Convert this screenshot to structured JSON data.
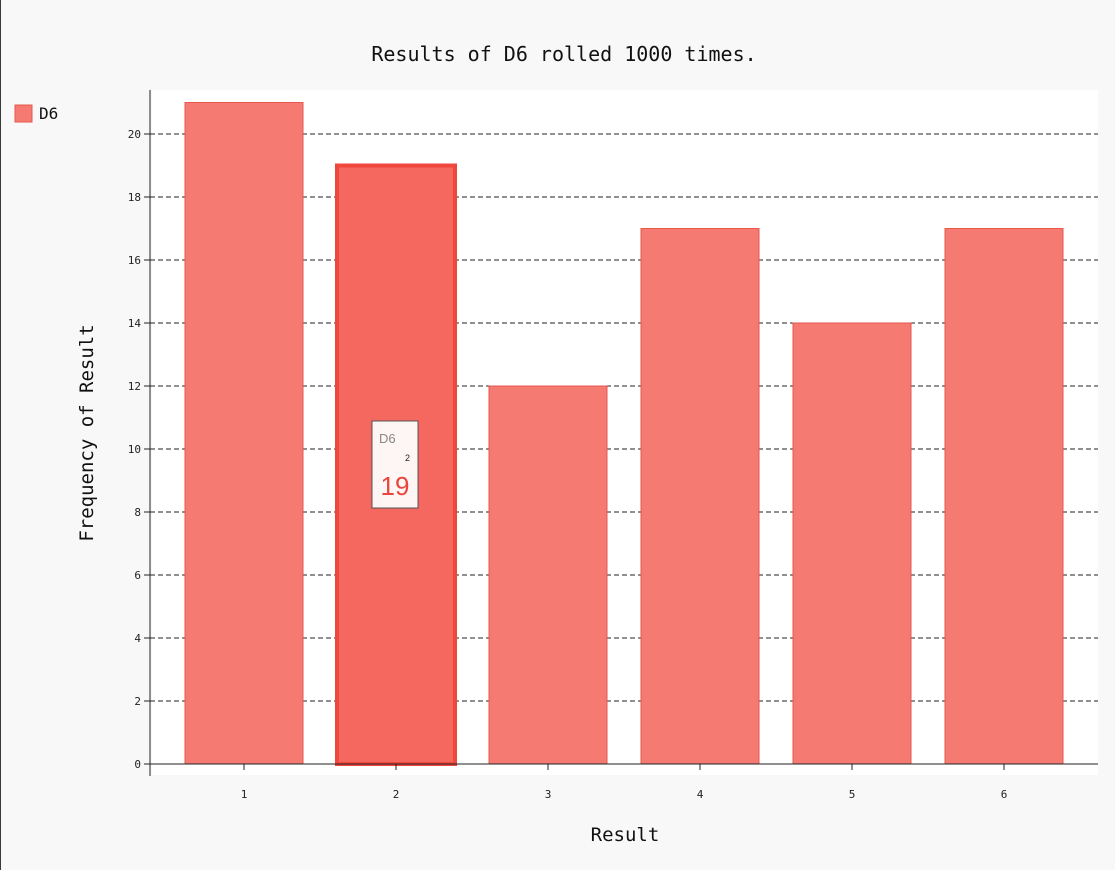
{
  "chart_data": {
    "type": "bar",
    "title": "Results of D6 rolled 1000 times.",
    "xlabel": "Result",
    "ylabel": "Frequency of Result",
    "categories": [
      "1",
      "2",
      "3",
      "4",
      "5",
      "6"
    ],
    "series": [
      {
        "name": "D6",
        "values": [
          21,
          19,
          12,
          17,
          14,
          17
        ]
      }
    ],
    "ylim": [
      0,
      21
    ],
    "yticks": [
      "0",
      "2",
      "4",
      "6",
      "8",
      "10",
      "12",
      "14",
      "16",
      "18",
      "20"
    ],
    "grid": true,
    "legend": "left",
    "colors": {
      "bar_fill": "#f47a72",
      "bar_stroke": "#e8564c",
      "bar_highlight_fill": "#f4685f",
      "bar_highlight_stroke": "#f0473d",
      "tooltip_value": "#e8453c",
      "grid": "#222222",
      "background": "#f8f8f8",
      "plot_background": "#ffffff"
    },
    "highlight": {
      "category": "2",
      "series": "D6",
      "value": "19",
      "index": 1
    }
  }
}
